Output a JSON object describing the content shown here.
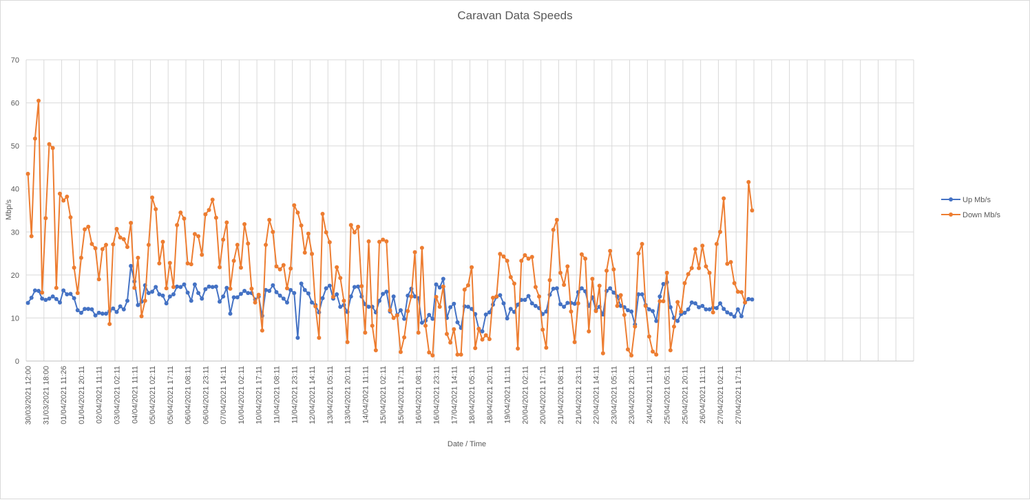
{
  "chart_data": {
    "type": "line",
    "title": "Caravan Data Speeds",
    "xlabel": "Date / Time",
    "ylabel": "Mbp/s",
    "ylim": [
      0,
      70
    ],
    "yticks": [
      0,
      10,
      20,
      30,
      40,
      50,
      60,
      70
    ],
    "grid": true,
    "legend_position": "right",
    "x_tick_labels": [
      "30/03/2021 12:00",
      "31/03/2021 18:00",
      "01/04/2021 11:26",
      "01/04/2021 20:11",
      "02/04/2021 11:11",
      "03/04/2021 02:11",
      "04/04/2021 11:11",
      "05/04/2021 02:11",
      "05/04/2021 17:11",
      "06/04/2021 08:11",
      "06/04/2021 23:11",
      "07/04/2021 14:11",
      "10/04/2021 02:11",
      "10/04/2021 17:11",
      "11/04/2021 08:11",
      "11/04/2021 23:11",
      "12/04/2021 14:11",
      "13/04/2021 05:11",
      "13/04/2021 20:11",
      "14/04/2021 11:11",
      "15/04/2021 02:11",
      "15/04/2021 17:11",
      "16/04/2021 08:11",
      "16/04/2021 23:11",
      "17/04/2021 14:11",
      "18/04/2021 05:11",
      "18/04/2021 20:11",
      "19/04/2021 11:11",
      "20/04/2021 02:11",
      "20/04/2021 17:11",
      "21/04/2021 08:11",
      "21/04/2021 23:11",
      "22/04/2021 14:11",
      "23/04/2021 05:11",
      "23/04/2021 20:11",
      "24/04/2021 11:11",
      "25/04/2021 05:11",
      "25/04/2021 20:11",
      "26/04/2021 11:11",
      "27/04/2021 02:11",
      "27/04/2021 17:11"
    ],
    "series": [
      {
        "name": "Up Mb/s",
        "color": "#4472c4",
        "values": [
          13.5,
          14.7,
          16.4,
          16.3,
          14.5,
          14.2,
          14.5,
          15.0,
          14.4,
          13.6,
          16.4,
          15.5,
          15.6,
          14.6,
          11.8,
          11.2,
          12.1,
          12.1,
          12.0,
          10.6,
          11.2,
          11.0,
          11.0,
          11.6,
          12.2,
          11.4,
          12.7,
          12.0,
          14.0,
          22.1,
          18.5,
          13.0,
          13.8,
          17.6,
          15.8,
          16.1,
          17.2,
          15.5,
          15.2,
          13.4,
          15.0,
          15.5,
          17.3,
          17.2,
          17.8,
          15.9,
          14.0,
          17.8,
          15.8,
          14.5,
          16.7,
          17.3,
          17.2,
          17.3,
          13.8,
          15.0,
          17.0,
          11.0,
          14.8,
          14.8,
          15.6,
          16.3,
          15.8,
          15.8,
          14.3,
          15.0,
          10.5,
          16.5,
          16.3,
          17.6,
          16.0,
          15.2,
          14.5,
          13.6,
          16.5,
          15.8,
          5.4,
          18.0,
          16.5,
          15.7,
          13.6,
          13.0,
          11.3,
          14.6,
          16.9,
          17.5,
          14.5,
          15.5,
          12.6,
          13.0,
          11.4,
          15.0,
          17.2,
          17.3,
          15.0,
          13.2,
          12.6,
          12.6,
          11.3,
          14.0,
          15.6,
          16.1,
          11.5,
          15.0,
          10.7,
          11.8,
          9.8,
          15.2,
          16.8,
          15.0,
          14.6,
          8.9,
          9.4,
          10.7,
          9.8,
          17.8,
          17.1,
          19.1,
          10.0,
          12.5,
          13.3,
          9.0,
          7.7,
          12.7,
          12.6,
          12.1,
          10.9,
          7.5,
          6.9,
          10.8,
          11.3,
          13.1,
          14.9,
          15.3,
          13.4,
          9.9,
          12.1,
          11.4,
          13.1,
          14.2,
          14.2,
          15.1,
          13.4,
          12.8,
          12.3,
          10.9,
          11.5,
          15.4,
          16.8,
          16.9,
          13.2,
          12.6,
          13.5,
          13.5,
          13.3,
          16.0,
          16.9,
          16.2,
          12.8,
          14.8,
          11.8,
          12.6,
          10.8,
          16.3,
          16.9,
          15.9,
          15.0,
          12.8,
          12.5,
          11.8,
          11.5,
          8.5,
          15.5,
          15.5,
          13.0,
          12.0,
          11.6,
          9.3,
          15.0,
          17.9,
          18.3,
          12.5,
          10.0,
          9.3,
          10.9,
          11.2,
          12.0,
          13.6,
          13.4,
          12.5,
          12.8,
          12.0,
          12.0,
          12.4,
          12.3,
          13.4,
          12.1,
          11.3,
          10.9,
          10.3,
          12.0,
          10.4,
          13.6,
          14.4,
          14.3
        ]
      },
      {
        "name": "Down Mb/s",
        "color": "#ed7d31",
        "values": [
          43.5,
          29.0,
          51.7,
          60.5,
          15.9,
          33.2,
          50.4,
          49.5,
          17.0,
          38.9,
          37.3,
          38.2,
          33.4,
          21.7,
          15.8,
          24.0,
          30.6,
          31.2,
          27.2,
          26.2,
          19.0,
          26.0,
          27.0,
          8.6,
          27.1,
          30.7,
          28.7,
          28.3,
          26.5,
          32.1,
          17.0,
          24.0,
          10.4,
          14.0,
          27.0,
          38.0,
          35.3,
          22.7,
          27.7,
          16.9,
          22.8,
          17.2,
          31.6,
          34.5,
          33.1,
          22.7,
          22.5,
          29.5,
          29.0,
          24.7,
          34.1,
          35.1,
          37.5,
          33.3,
          21.8,
          28.2,
          32.2,
          16.8,
          23.3,
          27.0,
          21.7,
          31.8,
          27.3,
          16.8,
          13.6,
          15.4,
          7.1,
          27.0,
          32.8,
          30.0,
          22.0,
          21.3,
          22.3,
          16.9,
          21.5,
          36.2,
          34.5,
          31.5,
          25.2,
          29.6,
          24.9,
          12.7,
          5.4,
          34.2,
          29.9,
          27.6,
          14.9,
          21.8,
          19.3,
          14.0,
          4.4,
          31.6,
          29.9,
          31.2,
          17.4,
          6.6,
          27.8,
          8.2,
          2.5,
          27.7,
          28.2,
          27.8,
          11.8,
          10.0,
          10.6,
          2.1,
          5.5,
          11.6,
          15.0,
          25.3,
          6.6,
          26.3,
          8.2,
          2.0,
          1.3,
          14.9,
          12.6,
          17.3,
          6.3,
          4.3,
          7.4,
          1.5,
          1.5,
          16.6,
          17.6,
          21.8,
          3.0,
          7.5,
          5.0,
          6.0,
          5.1,
          14.7,
          15.0,
          24.9,
          24.3,
          23.3,
          19.5,
          18.0,
          2.9,
          23.3,
          24.6,
          23.8,
          24.2,
          17.2,
          15.0,
          7.3,
          3.1,
          18.8,
          30.5,
          32.8,
          20.5,
          17.7,
          22.0,
          11.5,
          4.4,
          13.4,
          24.8,
          23.8,
          6.9,
          19.1,
          11.6,
          17.5,
          1.8,
          21.0,
          25.6,
          21.3,
          12.8,
          15.3,
          10.7,
          2.7,
          1.3,
          8.0,
          25.0,
          27.2,
          12.8,
          5.7,
          2.2,
          1.5,
          13.9,
          13.9,
          20.5,
          2.5,
          8.0,
          13.7,
          11.5,
          18.1,
          20.2,
          21.6,
          26.0,
          21.6,
          26.8,
          22.0,
          20.5,
          11.3,
          27.2,
          30.0,
          37.8,
          22.6,
          23.0,
          18.1,
          16.1,
          16.0,
          13.6,
          41.6,
          35.0
        ]
      }
    ]
  }
}
